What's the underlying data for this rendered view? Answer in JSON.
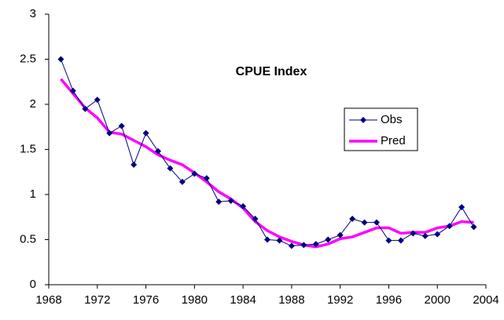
{
  "chart_data": {
    "type": "line",
    "title": "CPUE Index",
    "x": [
      1969,
      1970,
      1971,
      1972,
      1973,
      1974,
      1975,
      1976,
      1977,
      1978,
      1979,
      1980,
      1981,
      1982,
      1983,
      1984,
      1985,
      1986,
      1987,
      1988,
      1989,
      1990,
      1991,
      1992,
      1993,
      1994,
      1995,
      1996,
      1997,
      1998,
      1999,
      2000,
      2001,
      2002,
      2003
    ],
    "series": [
      {
        "name": "Obs",
        "color": "#000080",
        "values": [
          2.5,
          2.15,
          1.95,
          2.05,
          1.68,
          1.76,
          1.33,
          1.68,
          1.48,
          1.29,
          1.14,
          1.23,
          1.18,
          0.92,
          0.93,
          0.87,
          0.73,
          0.5,
          0.49,
          0.43,
          0.44,
          0.45,
          0.5,
          0.55,
          0.73,
          0.69,
          0.69,
          0.49,
          0.49,
          0.57,
          0.54,
          0.56,
          0.65,
          0.86,
          0.64
        ]
      },
      {
        "name": "Pred",
        "color": "#ff00ff",
        "values": [
          2.28,
          2.12,
          1.96,
          1.85,
          1.69,
          1.67,
          1.6,
          1.53,
          1.44,
          1.38,
          1.33,
          1.24,
          1.14,
          1.03,
          0.95,
          0.85,
          0.7,
          0.6,
          0.53,
          0.48,
          0.44,
          0.42,
          0.45,
          0.51,
          0.53,
          0.58,
          0.63,
          0.63,
          0.57,
          0.58,
          0.58,
          0.63,
          0.65,
          0.7,
          0.69
        ]
      }
    ],
    "xlim": [
      1968,
      2004
    ],
    "xticks": [
      1968,
      1972,
      1976,
      1980,
      1984,
      1988,
      1992,
      1996,
      2000,
      2004
    ],
    "ylim": [
      0,
      3
    ],
    "yticks": [
      0,
      0.5,
      1,
      1.5,
      2,
      2.5,
      3
    ]
  }
}
